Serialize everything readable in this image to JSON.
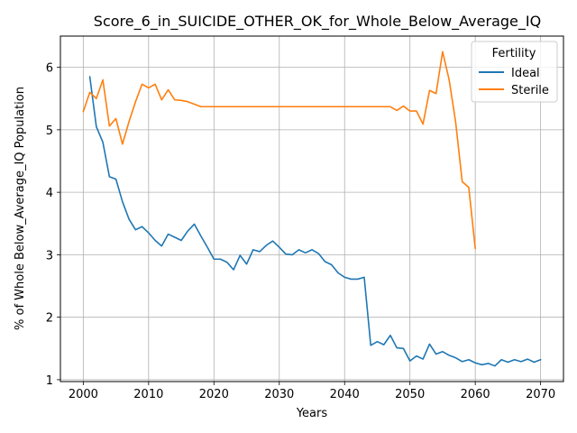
{
  "chart_data": {
    "type": "line",
    "title": "Score_6_in_SUICIDE_OTHER_OK_for_Whole_Below_Average_IQ",
    "xlabel": "Years",
    "ylabel": "% of Whole Below_Average_IQ Population",
    "xlim": [
      1996.5,
      2073.5
    ],
    "ylim": [
      0.97,
      6.5
    ],
    "xticks": [
      2000,
      2010,
      2020,
      2030,
      2040,
      2050,
      2060,
      2070
    ],
    "yticks": [
      1,
      2,
      3,
      4,
      5,
      6
    ],
    "grid": true,
    "legend": {
      "title": "Fertility",
      "placement": "top-right"
    },
    "series": [
      {
        "name": "Ideal",
        "color": "#1f77b4",
        "x": [
          2001,
          2002,
          2003,
          2004,
          2005,
          2006,
          2007,
          2008,
          2009,
          2010,
          2011,
          2012,
          2013,
          2014,
          2015,
          2016,
          2017,
          2018,
          2019,
          2020,
          2021,
          2022,
          2023,
          2024,
          2025,
          2026,
          2027,
          2028,
          2029,
          2030,
          2031,
          2032,
          2033,
          2034,
          2035,
          2036,
          2037,
          2038,
          2039,
          2040,
          2041,
          2042,
          2043,
          2044,
          2045,
          2046,
          2047,
          2048,
          2049,
          2050,
          2051,
          2052,
          2053,
          2054,
          2055,
          2056,
          2057,
          2058,
          2059,
          2060,
          2061,
          2062,
          2063,
          2064,
          2065,
          2066,
          2067,
          2068,
          2069,
          2070
        ],
        "y": [
          5.85,
          5.05,
          4.8,
          4.25,
          4.21,
          3.85,
          3.57,
          3.4,
          3.45,
          3.35,
          3.23,
          3.14,
          3.33,
          3.28,
          3.23,
          3.38,
          3.49,
          3.3,
          3.12,
          2.93,
          2.93,
          2.88,
          2.76,
          2.99,
          2.85,
          3.08,
          3.05,
          3.15,
          3.22,
          3.12,
          3.01,
          3.0,
          3.08,
          3.03,
          3.08,
          3.02,
          2.89,
          2.84,
          2.71,
          2.64,
          2.61,
          2.61,
          2.64,
          1.55,
          1.61,
          1.56,
          1.71,
          1.51,
          1.5,
          1.3,
          1.38,
          1.33,
          1.57,
          1.41,
          1.45,
          1.39,
          1.35,
          1.29,
          1.32,
          1.27,
          1.24,
          1.26,
          1.22,
          1.32,
          1.28,
          1.32,
          1.29,
          1.33,
          1.28,
          1.32
        ]
      },
      {
        "name": "Sterile",
        "color": "#ff7f0e",
        "x": [
          2000,
          2001,
          2002,
          2003,
          2004,
          2005,
          2006,
          2007,
          2008,
          2009,
          2010,
          2011,
          2012,
          2013,
          2014,
          2015,
          2016,
          2017,
          2018,
          2019,
          2020,
          2021,
          2022,
          2023,
          2024,
          2025,
          2026,
          2027,
          2028,
          2029,
          2030,
          2031,
          2032,
          2033,
          2034,
          2035,
          2036,
          2037,
          2038,
          2039,
          2040,
          2041,
          2042,
          2043,
          2044,
          2045,
          2046,
          2047,
          2048,
          2049,
          2050,
          2051,
          2052,
          2053,
          2054,
          2055,
          2056,
          2057,
          2058,
          2059,
          2060
        ],
        "y": [
          5.29,
          5.6,
          5.5,
          5.8,
          5.06,
          5.18,
          4.77,
          5.13,
          5.45,
          5.73,
          5.67,
          5.73,
          5.48,
          5.64,
          5.48,
          5.47,
          5.45,
          5.41,
          5.37,
          5.37,
          5.37,
          5.37,
          5.37,
          5.37,
          5.37,
          5.37,
          5.37,
          5.37,
          5.37,
          5.37,
          5.37,
          5.37,
          5.37,
          5.37,
          5.37,
          5.37,
          5.37,
          5.37,
          5.37,
          5.37,
          5.37,
          5.37,
          5.37,
          5.37,
          5.37,
          5.37,
          5.37,
          5.37,
          5.31,
          5.38,
          5.3,
          5.3,
          5.09,
          5.63,
          5.58,
          6.25,
          5.8,
          5.12,
          4.17,
          4.08,
          3.1
        ]
      }
    ]
  }
}
